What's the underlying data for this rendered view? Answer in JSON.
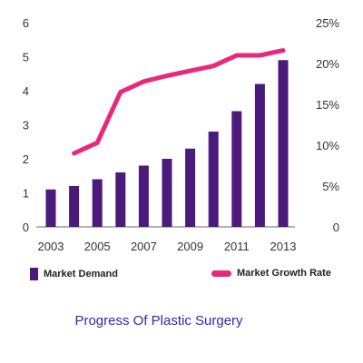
{
  "chart_data": {
    "type": "bar",
    "title": "Progress Of Plastic Surgery",
    "categories": [
      "2003",
      "2004",
      "2005",
      "2006",
      "2007",
      "2008",
      "2009",
      "2010",
      "2011",
      "2012",
      "2013"
    ],
    "x_tick_labels": [
      "2003",
      "2005",
      "2007",
      "2009",
      "2011",
      "2013"
    ],
    "series": [
      {
        "name": "Market Demand",
        "type": "bar",
        "axis": "left",
        "color": "#4b1a7a",
        "values": [
          1.1,
          1.2,
          1.4,
          1.6,
          1.8,
          2.0,
          2.3,
          2.8,
          3.4,
          4.2,
          4.9
        ]
      },
      {
        "name": "Market Growth Rate",
        "type": "line",
        "axis": "right",
        "color": "#e8287a",
        "x": [
          "2004",
          "2005",
          "2006",
          "2007",
          "2008",
          "2009",
          "2010",
          "2011",
          "2012",
          "2013"
        ],
        "values": [
          9,
          10.3,
          16.5,
          17.8,
          18.5,
          19.1,
          19.7,
          21,
          21,
          21.6
        ]
      }
    ],
    "y_left": {
      "ylim": [
        0,
        6
      ],
      "ticks": [
        "0",
        "1",
        "2",
        "3",
        "4",
        "5",
        "6"
      ]
    },
    "y_right": {
      "ylim": [
        0,
        25
      ],
      "ticks": [
        "0",
        "5%",
        "10%",
        "15%",
        "20%",
        "25%"
      ]
    },
    "grid": false,
    "legend": "bottom"
  }
}
